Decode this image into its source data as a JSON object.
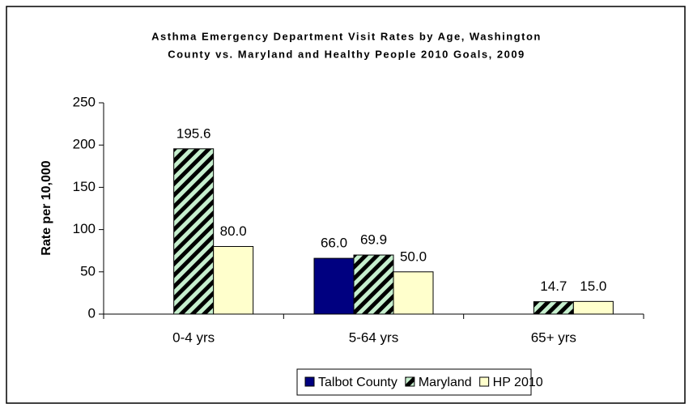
{
  "chart_data": {
    "type": "bar",
    "title": [
      "Asthma Emergency Department Visit Rates by Age, Washington",
      "County vs. Maryland and Healthy People 2010 Goals, 2009"
    ],
    "y_label": "Rate per 10,000",
    "categories": [
      "0-4 yrs",
      "5-64 yrs",
      "65+ yrs"
    ],
    "series": [
      {
        "name": "Talbot County",
        "color": "#000080",
        "values": [
          null,
          66.0,
          null
        ],
        "value_labels": [
          null,
          "66.0",
          null
        ]
      },
      {
        "name": "Maryland",
        "color": "#c6efce",
        "hatch": true,
        "values": [
          195.6,
          69.9,
          14.7
        ],
        "value_labels": [
          "195.6",
          "69.9",
          "14.7"
        ]
      },
      {
        "name": "HP 2010",
        "color": "#ffffcc",
        "values": [
          80.0,
          50.0,
          15.0
        ],
        "value_labels": [
          "80.0",
          "50.0",
          "15.0"
        ]
      }
    ],
    "ylim": [
      0,
      250
    ],
    "yticks": [
      0,
      50,
      100,
      150,
      200,
      250
    ],
    "grid": false,
    "legend": "bottom"
  }
}
